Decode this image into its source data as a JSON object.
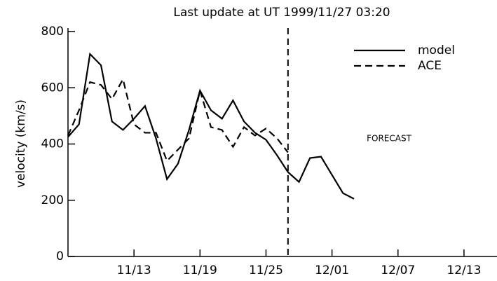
{
  "chart_data": {
    "type": "line",
    "title": "Last update at UT 1999/11/27 03:20",
    "ylabel": "velocity (km/s)",
    "annotation": "FORECAST",
    "x": [
      "11/07",
      "11/08",
      "11/09",
      "11/10",
      "11/11",
      "11/12",
      "11/13",
      "11/14",
      "11/15",
      "11/16",
      "11/17",
      "11/18",
      "11/19",
      "11/20",
      "11/21",
      "11/22",
      "11/23",
      "11/24",
      "11/25",
      "11/26",
      "11/27",
      "11/28",
      "11/29",
      "11/30",
      "12/01",
      "12/02",
      "12/03"
    ],
    "series": [
      {
        "name": "model",
        "color": "#000000",
        "dash": false,
        "values": [
          425,
          470,
          720,
          680,
          480,
          450,
          490,
          535,
          420,
          275,
          330,
          450,
          590,
          520,
          490,
          555,
          480,
          440,
          415,
          360,
          300,
          265,
          350,
          355,
          290,
          225,
          205
        ]
      },
      {
        "name": "ACE",
        "color": "#000000",
        "dash": true,
        "values": [
          430,
          520,
          620,
          610,
          560,
          630,
          470,
          440,
          440,
          340,
          380,
          420,
          590,
          460,
          450,
          390,
          460,
          430,
          455,
          420,
          370,
          null,
          null,
          null,
          null,
          null,
          null
        ]
      }
    ],
    "vline": "11/27",
    "xlim": [
      "11/07",
      "12/16"
    ],
    "xticks": [
      "11/13",
      "11/19",
      "11/25",
      "12/01",
      "12/07",
      "12/13"
    ],
    "ylim": [
      0,
      800
    ],
    "yticks": [
      0,
      200,
      400,
      600,
      800
    ],
    "legend": "upper right"
  }
}
